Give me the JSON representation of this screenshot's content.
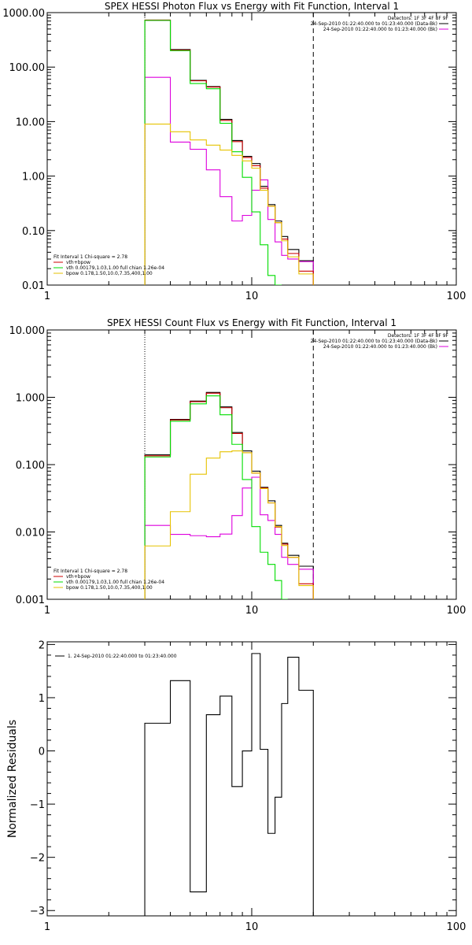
{
  "colors": {
    "data": "#000000",
    "bk": "#cc0000",
    "total": "#cc0000",
    "vth": "#00dd00",
    "vth_mid": "#00cc00",
    "bpow": "#e6c200",
    "magenta": "#dd00dd",
    "axis": "#000000"
  },
  "chart_data": [
    {
      "type": "line",
      "title": "SPEX HESSI Photon Flux vs Energy with Fit Function, Interval 1",
      "xscale": "log",
      "yscale": "log",
      "xlim": [
        1,
        100
      ],
      "ylim": [
        0.01,
        1000
      ],
      "xticks": [
        "1",
        "10",
        "100"
      ],
      "yticks": [
        "0.01",
        "0.10",
        "1.00",
        "10.00",
        "100.00",
        "1000.00"
      ],
      "grid": false,
      "legend_position": "bottom-left",
      "legend_title": "Fit Interval 1   Chi-square = 2.78",
      "legend": [
        "vth+bpow",
        "vth 0.00179,1.03,1.00  full chian 1.26e-04",
        "bpow 0.178,1.50,10.0,7.35,400,1.00"
      ],
      "header": [
        "Detectors: 1F 3F 4F 8F 9F",
        "24-Sep-2010 01:22:40.000 to 01:23:40.000 (Data-Bk)",
        "24-Sep-2010 01:22:40.000 to 01:23:40.000 (Bk)"
      ],
      "vlines": [
        {
          "x": 3,
          "style": "dotted"
        },
        {
          "x": 20,
          "style": "dashed"
        }
      ],
      "edges": [
        3,
        4,
        5,
        6,
        7,
        8,
        9,
        10,
        11,
        12,
        13,
        14,
        15,
        17,
        20
      ],
      "series": [
        {
          "name": "data",
          "color": "#000000",
          "values": [
            720,
            210,
            57,
            44,
            11,
            4.5,
            2.3,
            1.7,
            0.65,
            0.3,
            0.15,
            0.078,
            0.045,
            0.028
          ]
        },
        {
          "name": "Bk",
          "color": "#dd00dd",
          "values": [
            65,
            4.2,
            3.1,
            1.3,
            0.42,
            0.15,
            0.19,
            0.55,
            0.85,
            0.16,
            0.062,
            0.035,
            0.03,
            0.027
          ]
        },
        {
          "name": "vth+bpow",
          "color": "#cc0000",
          "values": [
            730,
            205,
            56,
            43,
            10.5,
            4.3,
            2.2,
            1.55,
            0.6,
            0.28,
            0.14,
            0.07,
            0.038,
            0.018
          ]
        },
        {
          "name": "vth",
          "color": "#00dd00",
          "values": [
            720,
            200,
            50,
            40,
            9.3,
            2.8,
            0.95,
            0.22,
            0.055,
            0.015,
            0.0
          ]
        },
        {
          "name": "bpow",
          "color": "#e6c200",
          "values": [
            9,
            6.5,
            4.6,
            3.7,
            3.0,
            2.4,
            1.9,
            1.4,
            0.55,
            0.28,
            0.14,
            0.065,
            0.033,
            0.016
          ]
        }
      ]
    },
    {
      "type": "line",
      "title": "SPEX HESSI Count Flux vs Energy with Fit Function, Interval 1",
      "xscale": "log",
      "yscale": "log",
      "xlim": [
        1,
        100
      ],
      "ylim": [
        0.001,
        10
      ],
      "xticks": [
        "1",
        "10",
        "100"
      ],
      "yticks": [
        "0.001",
        "0.010",
        "0.100",
        "1.000",
        "10.000"
      ],
      "grid": false,
      "legend_position": "bottom-left",
      "legend_title": "Fit Interval 1   Chi-square = 2.78",
      "legend": [
        "vth+bpow",
        "vth 0.00179,1.03,1.00  full chian 1.26e-04",
        "bpow 0.178,1.50,10.0,7.35,400,1.00"
      ],
      "header": [
        "Detectors: 1F 3F 4F 8F 9F",
        "24-Sep-2010 01:22:40.000 to 01:23:40.000 (Data-Bk)",
        "24-Sep-2010 01:22:40.000 to 01:23:40.000 (Bk)"
      ],
      "vlines": [
        {
          "x": 3,
          "style": "dotted"
        },
        {
          "x": 20,
          "style": "dashed"
        }
      ],
      "edges": [
        3,
        4,
        5,
        6,
        7,
        8,
        9,
        10,
        11,
        12,
        13,
        14,
        15,
        17,
        20
      ],
      "series": [
        {
          "name": "data",
          "color": "#000000",
          "values": [
            0.14,
            0.47,
            0.88,
            1.18,
            0.72,
            0.3,
            0.16,
            0.08,
            0.046,
            0.029,
            0.0125,
            0.0068,
            0.0045,
            0.0031
          ]
        },
        {
          "name": "Bk",
          "color": "#dd00dd",
          "values": [
            0.0125,
            0.0092,
            0.0088,
            0.0085,
            0.0093,
            0.0175,
            0.045,
            0.065,
            0.018,
            0.0148,
            0.0092,
            0.0042,
            0.0033,
            0.0028
          ]
        },
        {
          "name": "vth+bpow",
          "color": "#cc0000",
          "values": [
            0.135,
            0.46,
            0.86,
            1.15,
            0.7,
            0.29,
            0.15,
            0.075,
            0.045,
            0.027,
            0.0118,
            0.0066,
            0.0042,
            0.0017
          ]
        },
        {
          "name": "vth",
          "color": "#00dd00",
          "values": [
            0.13,
            0.44,
            0.8,
            1.05,
            0.55,
            0.2,
            0.06,
            0.012,
            0.005,
            0.0033,
            0.0019,
            0.0008
          ]
        },
        {
          "name": "bpow",
          "color": "#e6c200",
          "values": [
            0.0062,
            0.02,
            0.072,
            0.125,
            0.155,
            0.16,
            0.15,
            0.075,
            0.044,
            0.027,
            0.012,
            0.0063,
            0.0042,
            0.0016
          ]
        }
      ]
    },
    {
      "type": "line",
      "title": "",
      "xscale": "log",
      "yscale": "linear",
      "xlim": [
        1,
        100
      ],
      "ylim": [
        -3.1,
        2.05
      ],
      "xticks": [
        "1",
        "10",
        "100"
      ],
      "yticks": [
        "-3",
        "-2",
        "-1",
        "0",
        "1",
        "2"
      ],
      "ylabel": "Normalized Residuals",
      "grid": false,
      "legend_position": "top-left",
      "legend": [
        "1. 24-Sep-2010 01:22:40.000 to 01:23:40.000"
      ],
      "edges": [
        3,
        4,
        5,
        6,
        7,
        8,
        9,
        10,
        11,
        12,
        13,
        14,
        15,
        17,
        20
      ],
      "series": [
        {
          "name": "1. 24-Sep-2010 01:22:40.000 to 01:23:40.000",
          "color": "#000000",
          "values": [
            0.52,
            1.32,
            -2.65,
            0.68,
            1.03,
            -0.67,
            0.0,
            1.83,
            0.03,
            -1.55,
            -0.87,
            0.89,
            1.76,
            1.14
          ]
        }
      ]
    }
  ]
}
